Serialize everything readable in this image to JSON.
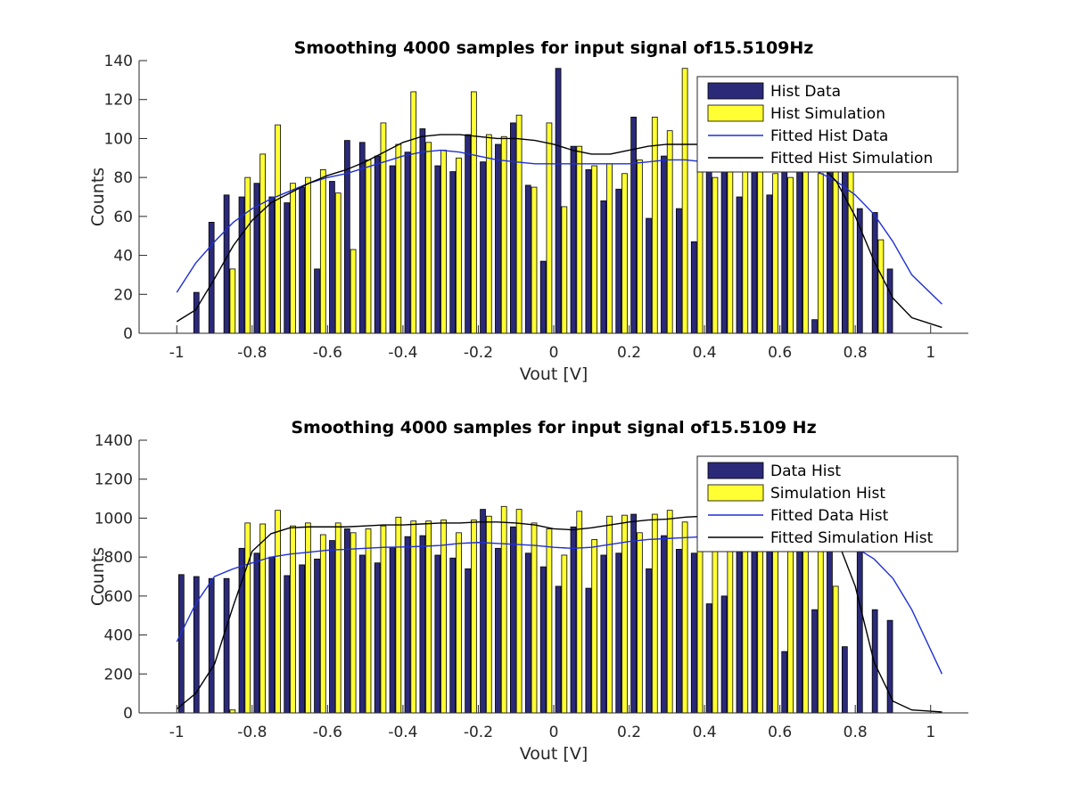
{
  "chart_data": [
    {
      "type": "bar",
      "title": "Smoothing 4000 samples for input signal of15.5109Hz",
      "xlabel": "Vout [V]",
      "ylabel": "Counts",
      "xlim": [
        -1.1,
        1.1
      ],
      "ylim": [
        0,
        140
      ],
      "xticks": [
        -1,
        -0.8,
        -0.6,
        -0.4,
        -0.2,
        0,
        0.2,
        0.4,
        0.6,
        0.8,
        1
      ],
      "xtick_labels": [
        "-1",
        "-0.8",
        "-0.6",
        "-0.4",
        "-0.2",
        "0",
        "0.2",
        "0.4",
        "0.6",
        "0.8",
        "1"
      ],
      "yticks": [
        0,
        20,
        40,
        60,
        80,
        100,
        120,
        140
      ],
      "ytick_labels": [
        "0",
        "20",
        "40",
        "60",
        "80",
        "100",
        "120",
        "140"
      ],
      "legend_position": "top-right",
      "bar_width": 0.014,
      "x": [
        -0.94,
        -0.9,
        -0.86,
        -0.82,
        -0.78,
        -0.74,
        -0.7,
        -0.66,
        -0.62,
        -0.58,
        -0.54,
        -0.5,
        -0.46,
        -0.42,
        -0.38,
        -0.34,
        -0.3,
        -0.26,
        -0.22,
        -0.18,
        -0.14,
        -0.1,
        -0.06,
        -0.02,
        0.02,
        0.06,
        0.1,
        0.14,
        0.18,
        0.22,
        0.26,
        0.3,
        0.34,
        0.38,
        0.42,
        0.46,
        0.5,
        0.54,
        0.58,
        0.62,
        0.66,
        0.7,
        0.74,
        0.78,
        0.82,
        0.86,
        0.9,
        0.94
      ],
      "series": [
        {
          "name": "Hist Data",
          "kind": "bar",
          "offset": -0.008,
          "color": "#2b2a79",
          "values": [
            21,
            57,
            71,
            70,
            77,
            70,
            67,
            75,
            33,
            78,
            99,
            98,
            91,
            86,
            93,
            105,
            86,
            83,
            102,
            88,
            97,
            108,
            76,
            37,
            136,
            96,
            84,
            68,
            74,
            111,
            59,
            91,
            64,
            47,
            88,
            90,
            70,
            86,
            71,
            93,
            89,
            7,
            95,
            88,
            64,
            62,
            33,
            0
          ]
        },
        {
          "name": "Hist Simulation",
          "kind": "bar",
          "offset": 0.008,
          "color": "#ffff33",
          "values": [
            0,
            0,
            33,
            80,
            92,
            107,
            77,
            80,
            84,
            72,
            43,
            89,
            108,
            97,
            124,
            98,
            94,
            90,
            124,
            102,
            101,
            112,
            75,
            108,
            65,
            96,
            86,
            87,
            82,
            89,
            111,
            104,
            136,
            98,
            80,
            89,
            87,
            85,
            82,
            80,
            85,
            82,
            88,
            84,
            0,
            48,
            0,
            0
          ]
        },
        {
          "name": "Fitted Hist Data",
          "kind": "line",
          "color": "#1f2fd6",
          "x": [
            -1.0,
            -0.95,
            -0.9,
            -0.85,
            -0.8,
            -0.75,
            -0.7,
            -0.65,
            -0.6,
            -0.55,
            -0.5,
            -0.45,
            -0.4,
            -0.35,
            -0.3,
            -0.25,
            -0.2,
            -0.15,
            -0.1,
            -0.05,
            0.0,
            0.05,
            0.1,
            0.15,
            0.2,
            0.25,
            0.3,
            0.35,
            0.4,
            0.45,
            0.5,
            0.55,
            0.6,
            0.65,
            0.7,
            0.75,
            0.8,
            0.85,
            0.9,
            0.95,
            1.03
          ],
          "values": [
            21,
            36,
            47,
            57,
            64,
            69,
            73,
            77,
            80,
            82,
            85,
            88,
            91,
            93,
            94,
            93,
            91,
            89,
            88,
            87,
            87,
            87,
            87,
            87,
            87,
            88,
            89,
            89,
            88,
            88,
            88,
            88,
            88,
            86,
            83,
            78,
            71,
            61,
            47,
            30,
            15
          ]
        },
        {
          "name": "Fitted Hist Simulation",
          "kind": "line",
          "color": "#000000",
          "x": [
            -1.0,
            -0.95,
            -0.9,
            -0.85,
            -0.8,
            -0.75,
            -0.7,
            -0.65,
            -0.6,
            -0.55,
            -0.5,
            -0.45,
            -0.4,
            -0.35,
            -0.3,
            -0.25,
            -0.2,
            -0.15,
            -0.1,
            -0.05,
            0.0,
            0.05,
            0.1,
            0.15,
            0.2,
            0.25,
            0.3,
            0.35,
            0.4,
            0.45,
            0.5,
            0.55,
            0.6,
            0.65,
            0.7,
            0.75,
            0.8,
            0.85,
            0.9,
            0.95,
            1.03
          ],
          "values": [
            6,
            12,
            28,
            45,
            58,
            67,
            72,
            77,
            81,
            84,
            88,
            93,
            98,
            101,
            102,
            102,
            101,
            100,
            100,
            99,
            97,
            94,
            92,
            92,
            94,
            96,
            97,
            97,
            97,
            96,
            95,
            93,
            93,
            92,
            88,
            78,
            60,
            37,
            18,
            8,
            3
          ]
        }
      ]
    },
    {
      "type": "bar",
      "title": "Smoothing 4000 samples for input signal of15.5109 Hz",
      "xlabel": "Vout [V]",
      "ylabel": "Counts",
      "xlim": [
        -1.1,
        1.1
      ],
      "ylim": [
        0,
        1400
      ],
      "xticks": [
        -1,
        -0.8,
        -0.6,
        -0.4,
        -0.2,
        0,
        0.2,
        0.4,
        0.6,
        0.8,
        1
      ],
      "xtick_labels": [
        "-1",
        "-0.8",
        "-0.6",
        "-0.4",
        "-0.2",
        "0",
        "0.2",
        "0.4",
        "0.6",
        "0.8",
        "1"
      ],
      "yticks": [
        0,
        200,
        400,
        600,
        800,
        1000,
        1200,
        1400
      ],
      "ytick_labels": [
        "0",
        "200",
        "400",
        "600",
        "800",
        "1000",
        "1200",
        "1400"
      ],
      "legend_position": "top-right",
      "bar_width": 0.014,
      "x": [
        -0.98,
        -0.94,
        -0.9,
        -0.86,
        -0.82,
        -0.78,
        -0.74,
        -0.7,
        -0.66,
        -0.62,
        -0.58,
        -0.54,
        -0.5,
        -0.46,
        -0.42,
        -0.38,
        -0.34,
        -0.3,
        -0.26,
        -0.22,
        -0.18,
        -0.14,
        -0.1,
        -0.06,
        -0.02,
        0.02,
        0.06,
        0.1,
        0.14,
        0.18,
        0.22,
        0.26,
        0.3,
        0.34,
        0.38,
        0.42,
        0.46,
        0.5,
        0.54,
        0.58,
        0.62,
        0.66,
        0.7,
        0.74,
        0.78,
        0.82,
        0.86,
        0.9,
        0.94,
        0.98
      ],
      "series": [
        {
          "name": "Data Hist",
          "kind": "bar",
          "offset": -0.008,
          "color": "#2b2a79",
          "values": [
            710,
            700,
            690,
            690,
            845,
            820,
            800,
            705,
            760,
            790,
            885,
            945,
            810,
            770,
            850,
            905,
            910,
            810,
            795,
            740,
            1045,
            845,
            955,
            820,
            750,
            650,
            955,
            640,
            810,
            820,
            1020,
            740,
            910,
            840,
            820,
            560,
            600,
            1300,
            920,
            870,
            315,
            1310,
            530,
            900,
            340,
            890,
            530,
            475,
            0,
            0
          ]
        },
        {
          "name": "Simulation Hist",
          "kind": "bar",
          "offset": 0.008,
          "color": "#ffff33",
          "values": [
            0,
            0,
            0,
            15,
            975,
            970,
            1040,
            960,
            975,
            915,
            975,
            925,
            945,
            960,
            1005,
            985,
            985,
            990,
            925,
            990,
            1010,
            1060,
            1045,
            975,
            945,
            810,
            1035,
            890,
            1010,
            1015,
            925,
            1020,
            1040,
            980,
            1000,
            930,
            840,
            1040,
            1005,
            1050,
            920,
            945,
            920,
            650,
            0,
            0,
            0,
            0,
            0,
            0
          ]
        },
        {
          "name": "Fitted Data Hist",
          "kind": "line",
          "color": "#1f2fd6",
          "x": [
            -1.0,
            -0.95,
            -0.9,
            -0.85,
            -0.8,
            -0.75,
            -0.7,
            -0.65,
            -0.6,
            -0.55,
            -0.5,
            -0.45,
            -0.4,
            -0.35,
            -0.3,
            -0.25,
            -0.2,
            -0.15,
            -0.1,
            -0.05,
            0.0,
            0.05,
            0.1,
            0.15,
            0.2,
            0.25,
            0.3,
            0.35,
            0.4,
            0.45,
            0.5,
            0.55,
            0.6,
            0.65,
            0.7,
            0.75,
            0.8,
            0.85,
            0.9,
            0.95,
            1.03
          ],
          "values": [
            365,
            560,
            700,
            740,
            770,
            800,
            815,
            825,
            835,
            840,
            845,
            850,
            852,
            855,
            860,
            870,
            875,
            870,
            865,
            860,
            850,
            845,
            850,
            865,
            880,
            890,
            895,
            900,
            905,
            905,
            910,
            910,
            905,
            900,
            895,
            880,
            850,
            790,
            690,
            530,
            200
          ]
        },
        {
          "name": "Fitted Simulation Hist",
          "kind": "line",
          "color": "#000000",
          "x": [
            -1.0,
            -0.95,
            -0.9,
            -0.85,
            -0.8,
            -0.75,
            -0.7,
            -0.65,
            -0.6,
            -0.55,
            -0.5,
            -0.45,
            -0.4,
            -0.35,
            -0.3,
            -0.25,
            -0.2,
            -0.15,
            -0.1,
            -0.05,
            0.0,
            0.05,
            0.1,
            0.15,
            0.2,
            0.25,
            0.3,
            0.35,
            0.4,
            0.45,
            0.5,
            0.55,
            0.6,
            0.65,
            0.7,
            0.75,
            0.8,
            0.85,
            0.9,
            0.95,
            1.03
          ],
          "values": [
            20,
            100,
            250,
            550,
            830,
            920,
            950,
            955,
            955,
            955,
            960,
            965,
            965,
            970,
            975,
            975,
            980,
            980,
            975,
            965,
            945,
            940,
            950,
            965,
            980,
            990,
            995,
            1005,
            1010,
            1010,
            1010,
            1005,
            1000,
            990,
            970,
            900,
            650,
            260,
            60,
            15,
            5
          ]
        }
      ]
    }
  ]
}
